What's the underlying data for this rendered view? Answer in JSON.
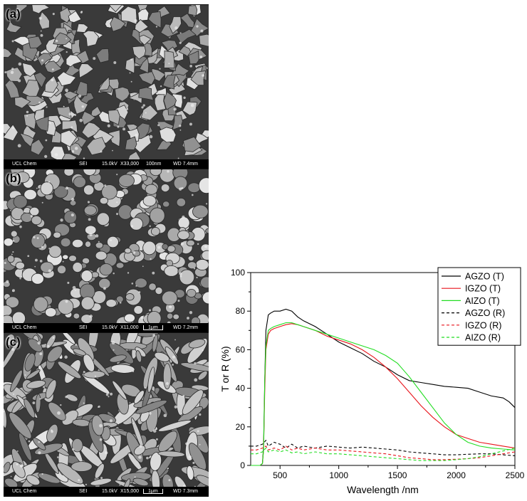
{
  "sem_panels": [
    {
      "letter": "(a)",
      "info_bar": {
        "lab": "UCL Chem",
        "detector": "SEI",
        "voltage": "15.0kV",
        "magnification": "X33,000",
        "scale": "100nm",
        "working_distance": "WD 7.4mm"
      },
      "texture": "flaky-grains",
      "tone": "#9a9a9a"
    },
    {
      "letter": "(b)",
      "info_bar": {
        "lab": "UCL Chem",
        "detector": "SEI",
        "voltage": "15.0kV",
        "magnification": "X11,000",
        "scale": "1μm",
        "working_distance": "WD 7.2mm"
      },
      "texture": "rounded-grains",
      "tone": "#8c8c8c"
    },
    {
      "letter": "(c)",
      "info_bar": {
        "lab": "UCL Chem",
        "detector": "SEI",
        "voltage": "15.0kV",
        "magnification": "X15,000",
        "scale": "1μm",
        "working_distance": "WD 7.3mm"
      },
      "texture": "platelet-grains",
      "tone": "#909090"
    }
  ],
  "chart_data": {
    "type": "line",
    "title": "",
    "xlabel": "Wavelength /nm",
    "ylabel": "T or R (%)",
    "xlim": [
      250,
      2500
    ],
    "ylim": [
      0,
      100
    ],
    "xticks": [
      500,
      1000,
      1500,
      2000,
      2500
    ],
    "yticks": [
      0,
      20,
      40,
      60,
      80,
      100
    ],
    "grid": false,
    "legend_position": "top-right",
    "series": [
      {
        "name": "AGZO (T)",
        "color": "#000000",
        "dash": "solid",
        "x": [
          250,
          330,
          350,
          360,
          370,
          380,
          400,
          420,
          450,
          480,
          500,
          550,
          600,
          650,
          700,
          800,
          900,
          1000,
          1100,
          1200,
          1300,
          1400,
          1500,
          1600,
          1700,
          1800,
          1900,
          2000,
          2100,
          2200,
          2300,
          2400,
          2450,
          2500
        ],
        "y": [
          0,
          0,
          1,
          10,
          45,
          70,
          78,
          79,
          80,
          80,
          80,
          81,
          80,
          77,
          75,
          72,
          68,
          64,
          61,
          58,
          54,
          51,
          47,
          44,
          43,
          42,
          41,
          40.5,
          40,
          38,
          36,
          35,
          33,
          30
        ]
      },
      {
        "name": "IGZO (T)",
        "color": "#e8141b",
        "dash": "solid",
        "x": [
          250,
          330,
          350,
          360,
          370,
          380,
          400,
          420,
          450,
          500,
          550,
          600,
          650,
          700,
          800,
          900,
          1000,
          1100,
          1200,
          1300,
          1400,
          1500,
          1600,
          1700,
          1800,
          1900,
          2000,
          2100,
          2200,
          2300,
          2400,
          2500
        ],
        "y": [
          0,
          0,
          1,
          8,
          40,
          60,
          68,
          70,
          71,
          72,
          73,
          73.5,
          73,
          72,
          70,
          67,
          65,
          63,
          60,
          56,
          51,
          45,
          38,
          31,
          25,
          20,
          16,
          14,
          12,
          11,
          10,
          9
        ]
      },
      {
        "name": "AIZO (T)",
        "color": "#22dd22",
        "dash": "solid",
        "x": [
          250,
          330,
          350,
          360,
          370,
          380,
          400,
          420,
          450,
          500,
          550,
          600,
          650,
          700,
          800,
          900,
          1000,
          1100,
          1200,
          1300,
          1400,
          1500,
          1600,
          1700,
          1800,
          1900,
          2000,
          2100,
          2200,
          2300,
          2400,
          2500
        ],
        "y": [
          0,
          0,
          1,
          8,
          45,
          62,
          70,
          71,
          72,
          73,
          74,
          74,
          73,
          72,
          70,
          68,
          66,
          64,
          62,
          60,
          57,
          53,
          46,
          38,
          30,
          22,
          16,
          12,
          10,
          9,
          8.5,
          8
        ]
      },
      {
        "name": "AGZO (R)",
        "color": "#000000",
        "dash": "dashed",
        "x": [
          250,
          300,
          350,
          380,
          400,
          450,
          500,
          550,
          600,
          650,
          700,
          800,
          900,
          1000,
          1100,
          1200,
          1300,
          1400,
          1500,
          1600,
          1700,
          1800,
          1900,
          2000,
          2100,
          2200,
          2300,
          2400,
          2500
        ],
        "y": [
          10,
          10,
          11,
          13,
          10,
          12,
          11,
          9,
          11,
          9,
          10,
          9,
          10,
          9.5,
          9,
          9.5,
          9,
          8.5,
          8,
          7,
          6.5,
          6,
          5.5,
          5.5,
          5.8,
          6,
          6,
          5.5,
          5
        ]
      },
      {
        "name": "IGZO (R)",
        "color": "#e8141b",
        "dash": "dashed",
        "x": [
          250,
          300,
          350,
          380,
          400,
          450,
          500,
          550,
          600,
          650,
          700,
          800,
          900,
          1000,
          1100,
          1200,
          1300,
          1400,
          1500,
          1600,
          1700,
          1800,
          1900,
          2000,
          2100,
          2200,
          2300,
          2400,
          2500
        ],
        "y": [
          8,
          8,
          9,
          10,
          8,
          9,
          8,
          10,
          8,
          9,
          8,
          9,
          8,
          8,
          7.5,
          7,
          6.5,
          6,
          5,
          4,
          3.5,
          3,
          3,
          3.2,
          3.5,
          4,
          5,
          6,
          7
        ]
      },
      {
        "name": "AIZO (R)",
        "color": "#22dd22",
        "dash": "dashed",
        "x": [
          250,
          300,
          350,
          380,
          400,
          450,
          500,
          550,
          600,
          650,
          700,
          800,
          900,
          1000,
          1100,
          1200,
          1300,
          1400,
          1500,
          1600,
          1700,
          1800,
          1900,
          2000,
          2100,
          2200,
          2300,
          2400,
          2500
        ],
        "y": [
          6,
          6,
          7,
          9,
          7,
          8,
          7,
          8,
          6.5,
          7,
          6,
          7,
          6,
          6,
          5.5,
          5,
          4.5,
          4,
          3.5,
          3,
          2.5,
          2.5,
          2.5,
          3,
          3.5,
          4.5,
          6,
          7.5,
          9
        ]
      }
    ]
  }
}
